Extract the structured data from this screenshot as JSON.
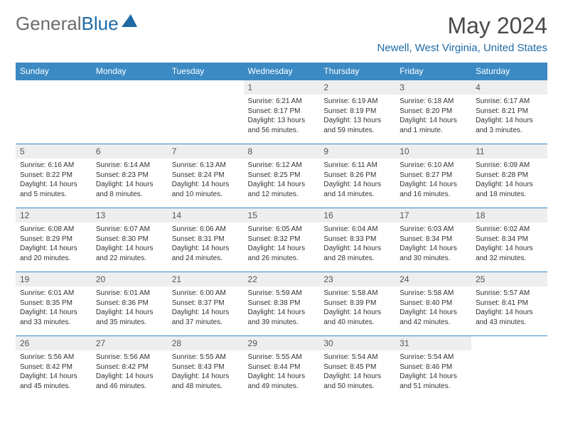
{
  "brand": {
    "first": "General",
    "second": "Blue"
  },
  "title": "May 2024",
  "location": "Newell, West Virginia, United States",
  "colors": {
    "header_bg": "#3b8ac4",
    "header_text": "#ffffff",
    "daynum_bg": "#eeeeee",
    "border": "#3b8ac4",
    "brand_blue": "#1f6aa5",
    "brand_gray": "#6b6b6b",
    "body_text": "#333333",
    "background": "#ffffff"
  },
  "weekdays": [
    "Sunday",
    "Monday",
    "Tuesday",
    "Wednesday",
    "Thursday",
    "Friday",
    "Saturday"
  ],
  "weeks": [
    [
      null,
      null,
      null,
      {
        "n": "1",
        "sr": "6:21 AM",
        "ss": "8:17 PM",
        "dl": "13 hours and 56 minutes."
      },
      {
        "n": "2",
        "sr": "6:19 AM",
        "ss": "8:19 PM",
        "dl": "13 hours and 59 minutes."
      },
      {
        "n": "3",
        "sr": "6:18 AM",
        "ss": "8:20 PM",
        "dl": "14 hours and 1 minute."
      },
      {
        "n": "4",
        "sr": "6:17 AM",
        "ss": "8:21 PM",
        "dl": "14 hours and 3 minutes."
      }
    ],
    [
      {
        "n": "5",
        "sr": "6:16 AM",
        "ss": "8:22 PM",
        "dl": "14 hours and 5 minutes."
      },
      {
        "n": "6",
        "sr": "6:14 AM",
        "ss": "8:23 PM",
        "dl": "14 hours and 8 minutes."
      },
      {
        "n": "7",
        "sr": "6:13 AM",
        "ss": "8:24 PM",
        "dl": "14 hours and 10 minutes."
      },
      {
        "n": "8",
        "sr": "6:12 AM",
        "ss": "8:25 PM",
        "dl": "14 hours and 12 minutes."
      },
      {
        "n": "9",
        "sr": "6:11 AM",
        "ss": "8:26 PM",
        "dl": "14 hours and 14 minutes."
      },
      {
        "n": "10",
        "sr": "6:10 AM",
        "ss": "8:27 PM",
        "dl": "14 hours and 16 minutes."
      },
      {
        "n": "11",
        "sr": "6:09 AM",
        "ss": "8:28 PM",
        "dl": "14 hours and 18 minutes."
      }
    ],
    [
      {
        "n": "12",
        "sr": "6:08 AM",
        "ss": "8:29 PM",
        "dl": "14 hours and 20 minutes."
      },
      {
        "n": "13",
        "sr": "6:07 AM",
        "ss": "8:30 PM",
        "dl": "14 hours and 22 minutes."
      },
      {
        "n": "14",
        "sr": "6:06 AM",
        "ss": "8:31 PM",
        "dl": "14 hours and 24 minutes."
      },
      {
        "n": "15",
        "sr": "6:05 AM",
        "ss": "8:32 PM",
        "dl": "14 hours and 26 minutes."
      },
      {
        "n": "16",
        "sr": "6:04 AM",
        "ss": "8:33 PM",
        "dl": "14 hours and 28 minutes."
      },
      {
        "n": "17",
        "sr": "6:03 AM",
        "ss": "8:34 PM",
        "dl": "14 hours and 30 minutes."
      },
      {
        "n": "18",
        "sr": "6:02 AM",
        "ss": "8:34 PM",
        "dl": "14 hours and 32 minutes."
      }
    ],
    [
      {
        "n": "19",
        "sr": "6:01 AM",
        "ss": "8:35 PM",
        "dl": "14 hours and 33 minutes."
      },
      {
        "n": "20",
        "sr": "6:01 AM",
        "ss": "8:36 PM",
        "dl": "14 hours and 35 minutes."
      },
      {
        "n": "21",
        "sr": "6:00 AM",
        "ss": "8:37 PM",
        "dl": "14 hours and 37 minutes."
      },
      {
        "n": "22",
        "sr": "5:59 AM",
        "ss": "8:38 PM",
        "dl": "14 hours and 39 minutes."
      },
      {
        "n": "23",
        "sr": "5:58 AM",
        "ss": "8:39 PM",
        "dl": "14 hours and 40 minutes."
      },
      {
        "n": "24",
        "sr": "5:58 AM",
        "ss": "8:40 PM",
        "dl": "14 hours and 42 minutes."
      },
      {
        "n": "25",
        "sr": "5:57 AM",
        "ss": "8:41 PM",
        "dl": "14 hours and 43 minutes."
      }
    ],
    [
      {
        "n": "26",
        "sr": "5:56 AM",
        "ss": "8:42 PM",
        "dl": "14 hours and 45 minutes."
      },
      {
        "n": "27",
        "sr": "5:56 AM",
        "ss": "8:42 PM",
        "dl": "14 hours and 46 minutes."
      },
      {
        "n": "28",
        "sr": "5:55 AM",
        "ss": "8:43 PM",
        "dl": "14 hours and 48 minutes."
      },
      {
        "n": "29",
        "sr": "5:55 AM",
        "ss": "8:44 PM",
        "dl": "14 hours and 49 minutes."
      },
      {
        "n": "30",
        "sr": "5:54 AM",
        "ss": "8:45 PM",
        "dl": "14 hours and 50 minutes."
      },
      {
        "n": "31",
        "sr": "5:54 AM",
        "ss": "8:46 PM",
        "dl": "14 hours and 51 minutes."
      },
      null
    ]
  ],
  "labels": {
    "sunrise": "Sunrise: ",
    "sunset": "Sunset: ",
    "daylight": "Daylight: "
  }
}
